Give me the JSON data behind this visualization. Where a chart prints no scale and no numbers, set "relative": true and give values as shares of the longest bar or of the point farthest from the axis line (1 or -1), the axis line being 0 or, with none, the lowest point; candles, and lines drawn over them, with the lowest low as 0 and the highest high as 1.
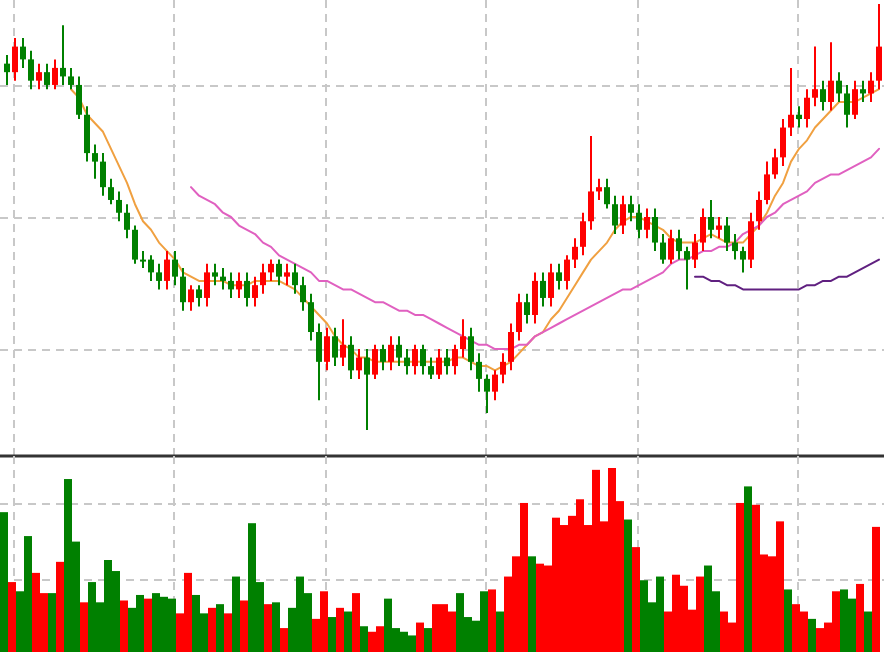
{
  "chart_data": [
    {
      "type": "candlestick",
      "relative": true,
      "grid": true,
      "categories": [
        null,
        null,
        null,
        null,
        null,
        null,
        null,
        null,
        null,
        null,
        null,
        null,
        null,
        null,
        null,
        null,
        null,
        null,
        null,
        null,
        null,
        null,
        null,
        null,
        null,
        null,
        null,
        null,
        null,
        null,
        null,
        null,
        null,
        null,
        null,
        null,
        null,
        null,
        null,
        null,
        null,
        null,
        null,
        null,
        null,
        null,
        null,
        null,
        null,
        null,
        null,
        null,
        null,
        null,
        null,
        null,
        null,
        null,
        null,
        null,
        null,
        null,
        null,
        null,
        null,
        null,
        null,
        null,
        null,
        null,
        null,
        null,
        null,
        null,
        null,
        null,
        null,
        null,
        null,
        null,
        null,
        null,
        null,
        null,
        null,
        null,
        null,
        null,
        null,
        null,
        null,
        null,
        null,
        null,
        null,
        null,
        null,
        null,
        null,
        null,
        null,
        null,
        null,
        null,
        null,
        null,
        null,
        null,
        null,
        null
      ],
      "ohlc": [
        [
          0.86,
          0.88,
          0.81,
          0.84
        ],
        [
          0.84,
          0.92,
          0.82,
          0.9
        ],
        [
          0.9,
          0.92,
          0.85,
          0.87
        ],
        [
          0.87,
          0.89,
          0.8,
          0.82
        ],
        [
          0.82,
          0.86,
          0.8,
          0.84
        ],
        [
          0.84,
          0.86,
          0.8,
          0.81
        ],
        [
          0.81,
          0.87,
          0.8,
          0.85
        ],
        [
          0.85,
          0.95,
          0.81,
          0.83
        ],
        [
          0.83,
          0.85,
          0.8,
          0.81
        ],
        [
          0.81,
          0.83,
          0.73,
          0.74
        ],
        [
          0.74,
          0.76,
          0.63,
          0.65
        ],
        [
          0.65,
          0.67,
          0.59,
          0.63
        ],
        [
          0.63,
          0.65,
          0.55,
          0.57
        ],
        [
          0.57,
          0.59,
          0.53,
          0.54
        ],
        [
          0.54,
          0.56,
          0.49,
          0.51
        ],
        [
          0.51,
          0.53,
          0.45,
          0.47
        ],
        [
          0.47,
          0.48,
          0.39,
          0.4
        ],
        [
          0.4,
          0.42,
          0.38,
          0.4
        ],
        [
          0.4,
          0.41,
          0.35,
          0.37
        ],
        [
          0.37,
          0.39,
          0.33,
          0.35
        ],
        [
          0.35,
          0.42,
          0.33,
          0.4
        ],
        [
          0.4,
          0.42,
          0.34,
          0.36
        ],
        [
          0.36,
          0.38,
          0.28,
          0.3
        ],
        [
          0.3,
          0.34,
          0.28,
          0.33
        ],
        [
          0.33,
          0.34,
          0.29,
          0.31
        ],
        [
          0.31,
          0.39,
          0.29,
          0.37
        ],
        [
          0.37,
          0.39,
          0.34,
          0.36
        ],
        [
          0.36,
          0.38,
          0.33,
          0.35
        ],
        [
          0.35,
          0.37,
          0.31,
          0.33
        ],
        [
          0.33,
          0.37,
          0.31,
          0.35
        ],
        [
          0.35,
          0.37,
          0.29,
          0.31
        ],
        [
          0.31,
          0.36,
          0.29,
          0.34
        ],
        [
          0.34,
          0.39,
          0.32,
          0.37
        ],
        [
          0.37,
          0.4,
          0.35,
          0.39
        ],
        [
          0.39,
          0.4,
          0.34,
          0.36
        ],
        [
          0.36,
          0.39,
          0.34,
          0.37
        ],
        [
          0.37,
          0.39,
          0.32,
          0.34
        ],
        [
          0.34,
          0.36,
          0.28,
          0.3
        ],
        [
          0.3,
          0.32,
          0.21,
          0.23
        ],
        [
          0.23,
          0.25,
          0.07,
          0.16
        ],
        [
          0.16,
          0.24,
          0.14,
          0.22
        ],
        [
          0.22,
          0.24,
          0.15,
          0.17
        ],
        [
          0.17,
          0.26,
          0.15,
          0.2
        ],
        [
          0.2,
          0.22,
          0.12,
          0.14
        ],
        [
          0.14,
          0.19,
          0.12,
          0.17
        ],
        [
          0.17,
          0.19,
          0,
          0.13
        ],
        [
          0.13,
          0.2,
          0.12,
          0.19
        ],
        [
          0.19,
          0.2,
          0.14,
          0.16
        ],
        [
          0.16,
          0.22,
          0.14,
          0.2
        ],
        [
          0.2,
          0.22,
          0.15,
          0.17
        ],
        [
          0.17,
          0.19,
          0.13,
          0.15
        ],
        [
          0.15,
          0.2,
          0.13,
          0.19
        ],
        [
          0.19,
          0.2,
          0.13,
          0.15
        ],
        [
          0.15,
          0.17,
          0.12,
          0.13
        ],
        [
          0.13,
          0.19,
          0.12,
          0.17
        ],
        [
          0.17,
          0.19,
          0.13,
          0.15
        ],
        [
          0.15,
          0.2,
          0.13,
          0.19
        ],
        [
          0.19,
          0.26,
          0.17,
          0.22
        ],
        [
          0.22,
          0.24,
          0.14,
          0.16
        ],
        [
          0.16,
          0.18,
          0.09,
          0.12
        ],
        [
          0.12,
          0.13,
          0.04,
          0.09
        ],
        [
          0.09,
          0.14,
          0.07,
          0.13
        ],
        [
          0.13,
          0.18,
          0.11,
          0.16
        ],
        [
          0.16,
          0.25,
          0.14,
          0.23
        ],
        [
          0.23,
          0.32,
          0.21,
          0.3
        ],
        [
          0.3,
          0.32,
          0.25,
          0.27
        ],
        [
          0.27,
          0.37,
          0.25,
          0.35
        ],
        [
          0.35,
          0.37,
          0.29,
          0.31
        ],
        [
          0.31,
          0.39,
          0.29,
          0.37
        ],
        [
          0.37,
          0.39,
          0.33,
          0.35
        ],
        [
          0.35,
          0.41,
          0.33,
          0.4
        ],
        [
          0.4,
          0.45,
          0.38,
          0.43
        ],
        [
          0.43,
          0.51,
          0.41,
          0.49
        ],
        [
          0.49,
          0.69,
          0.47,
          0.56
        ],
        [
          0.56,
          0.59,
          0.54,
          0.57
        ],
        [
          0.57,
          0.59,
          0.52,
          0.53
        ],
        [
          0.53,
          0.55,
          0.46,
          0.48
        ],
        [
          0.48,
          0.55,
          0.46,
          0.53
        ],
        [
          0.53,
          0.55,
          0.49,
          0.51
        ],
        [
          0.51,
          0.53,
          0.45,
          0.47
        ],
        [
          0.47,
          0.52,
          0.45,
          0.5
        ],
        [
          0.5,
          0.52,
          0.42,
          0.44
        ],
        [
          0.44,
          0.46,
          0.39,
          0.4
        ],
        [
          0.4,
          0.47,
          0.39,
          0.45
        ],
        [
          0.45,
          0.47,
          0.4,
          0.42
        ],
        [
          0.42,
          0.43,
          0.33,
          0.4
        ],
        [
          0.4,
          0.46,
          0.38,
          0.44
        ],
        [
          0.44,
          0.52,
          0.42,
          0.5
        ],
        [
          0.5,
          0.54,
          0.45,
          0.47
        ],
        [
          0.47,
          0.5,
          0.45,
          0.48
        ],
        [
          0.48,
          0.5,
          0.42,
          0.44
        ],
        [
          0.44,
          0.46,
          0.4,
          0.42
        ],
        [
          0.42,
          0.43,
          0.37,
          0.4
        ],
        [
          0.4,
          0.51,
          0.38,
          0.49
        ],
        [
          0.49,
          0.56,
          0.47,
          0.54
        ],
        [
          0.54,
          0.63,
          0.53,
          0.6
        ],
        [
          0.6,
          0.66,
          0.59,
          0.64
        ],
        [
          0.64,
          0.73,
          0.62,
          0.71
        ],
        [
          0.71,
          0.85,
          0.69,
          0.74
        ],
        [
          0.74,
          0.76,
          0.71,
          0.73
        ],
        [
          0.73,
          0.8,
          0.71,
          0.78
        ],
        [
          0.78,
          0.9,
          0.76,
          0.8
        ],
        [
          0.8,
          0.82,
          0.75,
          0.77
        ],
        [
          0.77,
          0.91,
          0.75,
          0.82
        ],
        [
          0.82,
          0.84,
          0.77,
          0.79
        ],
        [
          0.79,
          0.81,
          0.71,
          0.74
        ],
        [
          0.74,
          0.82,
          0.73,
          0.8
        ],
        [
          0.8,
          0.82,
          0.77,
          0.79
        ],
        [
          0.79,
          0.84,
          0.77,
          0.82
        ],
        [
          0.82,
          1.0,
          0.8,
          0.9
        ]
      ],
      "colors": [
        "#008000",
        "#ff0000",
        "#008000",
        "#008000",
        "#ff0000",
        "#008000",
        "#ff0000",
        "#008000",
        "#008000",
        "#008000",
        "#008000",
        "#008000",
        "#008000",
        "#008000",
        "#008000",
        "#008000",
        "#008000",
        "#008000",
        "#008000",
        "#008000",
        "#ff0000",
        "#008000",
        "#008000",
        "#ff0000",
        "#008000",
        "#ff0000",
        "#008000",
        "#008000",
        "#008000",
        "#ff0000",
        "#008000",
        "#ff0000",
        "#ff0000",
        "#ff0000",
        "#008000",
        "#ff0000",
        "#008000",
        "#008000",
        "#008000",
        "#008000",
        "#ff0000",
        "#008000",
        "#ff0000",
        "#008000",
        "#ff0000",
        "#008000",
        "#ff0000",
        "#008000",
        "#ff0000",
        "#008000",
        "#008000",
        "#ff0000",
        "#008000",
        "#008000",
        "#ff0000",
        "#008000",
        "#ff0000",
        "#ff0000",
        "#008000",
        "#008000",
        "#008000",
        "#ff0000",
        "#ff0000",
        "#ff0000",
        "#ff0000",
        "#008000",
        "#ff0000",
        "#008000",
        "#ff0000",
        "#008000",
        "#ff0000",
        "#ff0000",
        "#ff0000",
        "#ff0000",
        "#ff0000",
        "#008000",
        "#008000",
        "#ff0000",
        "#008000",
        "#008000",
        "#ff0000",
        "#008000",
        "#008000",
        "#ff0000",
        "#008000",
        "#008000",
        "#ff0000",
        "#ff0000",
        "#008000",
        "#ff0000",
        "#008000",
        "#008000",
        "#008000",
        "#ff0000",
        "#ff0000",
        "#ff0000",
        "#ff0000",
        "#ff0000",
        "#ff0000",
        "#008000",
        "#ff0000",
        "#ff0000",
        "#008000",
        "#ff0000",
        "#008000",
        "#008000",
        "#ff0000",
        "#008000",
        "#ff0000",
        "#ff0000"
      ],
      "series": [
        {
          "type": "line",
          "color": "#f0a040",
          "values": [
            null,
            null,
            null,
            null,
            null,
            null,
            null,
            null,
            0.8,
            0.78,
            0.74,
            0.72,
            0.7,
            0.66,
            0.62,
            0.58,
            0.53,
            0.49,
            0.47,
            0.44,
            0.42,
            0.4,
            0.37,
            0.36,
            0.35,
            0.35,
            0.35,
            0.35,
            0.34,
            0.34,
            0.34,
            0.35,
            0.35,
            0.35,
            0.35,
            0.34,
            0.33,
            0.31,
            0.29,
            0.27,
            0.25,
            0.22,
            0.2,
            0.19,
            0.17,
            0.17,
            0.16,
            0.16,
            0.16,
            0.16,
            0.16,
            0.16,
            0.16,
            0.16,
            0.16,
            0.16,
            0.17,
            0.17,
            0.16,
            0.15,
            0.15,
            0.14,
            0.15,
            0.16,
            0.18,
            0.2,
            0.22,
            0.23,
            0.26,
            0.28,
            0.31,
            0.34,
            0.37,
            0.4,
            0.42,
            0.44,
            0.47,
            0.49,
            0.5,
            0.5,
            0.49,
            0.48,
            0.47,
            0.45,
            0.44,
            0.44,
            0.44,
            0.45,
            0.46,
            0.45,
            0.44,
            0.44,
            0.44,
            0.46,
            0.48,
            0.51,
            0.55,
            0.58,
            0.63,
            0.66,
            0.68,
            0.71,
            0.73,
            0.75,
            0.77,
            0.77,
            0.77,
            0.78,
            0.79,
            0.8
          ]
        },
        {
          "type": "line",
          "color": "#e060c0",
          "values": [
            null,
            null,
            null,
            null,
            null,
            null,
            null,
            null,
            null,
            null,
            null,
            null,
            null,
            null,
            null,
            null,
            null,
            null,
            null,
            null,
            null,
            null,
            null,
            0.57,
            0.55,
            0.54,
            0.53,
            0.51,
            0.5,
            0.48,
            0.47,
            0.46,
            0.44,
            0.43,
            0.41,
            0.4,
            0.39,
            0.38,
            0.37,
            0.35,
            0.35,
            0.34,
            0.33,
            0.33,
            0.32,
            0.31,
            0.3,
            0.3,
            0.29,
            0.28,
            0.28,
            0.27,
            0.27,
            0.26,
            0.25,
            0.24,
            0.23,
            0.22,
            0.21,
            0.2,
            0.2,
            0.19,
            0.19,
            0.19,
            0.2,
            0.2,
            0.22,
            0.23,
            0.24,
            0.25,
            0.26,
            0.27,
            0.28,
            0.29,
            0.3,
            0.31,
            0.32,
            0.33,
            0.33,
            0.34,
            0.35,
            0.36,
            0.37,
            0.39,
            0.4,
            0.4,
            0.41,
            0.42,
            0.42,
            0.43,
            0.43,
            0.44,
            0.46,
            0.47,
            0.48,
            0.5,
            0.51,
            0.53,
            0.54,
            0.55,
            0.56,
            0.58,
            0.59,
            0.6,
            0.6,
            0.61,
            0.62,
            0.63,
            0.64,
            0.66
          ]
        },
        {
          "type": "line",
          "color": "#602080",
          "values": [
            null,
            null,
            null,
            null,
            null,
            null,
            null,
            null,
            null,
            null,
            null,
            null,
            null,
            null,
            null,
            null,
            null,
            null,
            null,
            null,
            null,
            null,
            null,
            null,
            null,
            null,
            null,
            null,
            null,
            null,
            null,
            null,
            null,
            null,
            null,
            null,
            null,
            null,
            null,
            null,
            null,
            null,
            null,
            null,
            null,
            null,
            null,
            null,
            null,
            null,
            null,
            null,
            null,
            null,
            null,
            null,
            null,
            null,
            null,
            null,
            null,
            null,
            null,
            null,
            null,
            null,
            null,
            null,
            null,
            null,
            null,
            null,
            null,
            null,
            null,
            null,
            null,
            null,
            null,
            null,
            null,
            null,
            null,
            null,
            null,
            null,
            0.36,
            0.36,
            0.35,
            0.35,
            0.34,
            0.34,
            0.33,
            0.33,
            0.33,
            0.33,
            0.33,
            0.33,
            0.33,
            0.33,
            0.34,
            0.34,
            0.35,
            0.35,
            0.36,
            0.36,
            0.37,
            0.38,
            0.39,
            0.4
          ]
        }
      ]
    },
    {
      "type": "bar",
      "relative": true,
      "grid": true,
      "categories": [
        null,
        null,
        null,
        null,
        null,
        null,
        null,
        null,
        null,
        null,
        null,
        null,
        null,
        null,
        null,
        null,
        null,
        null,
        null,
        null,
        null,
        null,
        null,
        null,
        null,
        null,
        null,
        null,
        null,
        null,
        null,
        null,
        null,
        null,
        null,
        null,
        null,
        null,
        null,
        null,
        null,
        null,
        null,
        null,
        null,
        null,
        null,
        null,
        null,
        null,
        null,
        null,
        null,
        null,
        null,
        null,
        null,
        null,
        null,
        null,
        null,
        null,
        null,
        null,
        null,
        null,
        null,
        null,
        null,
        null,
        null,
        null,
        null,
        null,
        null,
        null,
        null,
        null,
        null,
        null,
        null,
        null,
        null,
        null,
        null,
        null,
        null,
        null,
        null,
        null,
        null,
        null,
        null,
        null,
        null,
        null,
        null,
        null,
        null,
        null,
        null,
        null,
        null,
        null,
        null,
        null,
        null,
        null,
        null,
        null
      ],
      "values": [
        0.76,
        0.38,
        0.33,
        0.63,
        0.43,
        0.32,
        0.32,
        0.49,
        0.94,
        0.6,
        0.27,
        0.38,
        0.27,
        0.5,
        0.44,
        0.28,
        0.24,
        0.31,
        0.29,
        0.32,
        0.3,
        0.29,
        0.21,
        0.43,
        0.31,
        0.21,
        0.24,
        0.26,
        0.21,
        0.41,
        0.28,
        0.7,
        0.38,
        0.26,
        0.27,
        0.13,
        0.24,
        0.41,
        0.32,
        0.18,
        0.33,
        0.19,
        0.24,
        0.22,
        0.32,
        0.14,
        0.11,
        0.14,
        0.29,
        0.13,
        0.11,
        0.09,
        0.16,
        0.13,
        0.26,
        0.26,
        0.22,
        0.32,
        0.19,
        0.17,
        0.33,
        0.34,
        0.22,
        0.41,
        0.52,
        0.81,
        0.52,
        0.48,
        0.47,
        0.73,
        0.69,
        0.74,
        0.83,
        0.69,
        0.99,
        0.71,
        1.0,
        0.82,
        0.72,
        0.57,
        0.39,
        0.27,
        0.41,
        0.22,
        0.42,
        0.36,
        0.23,
        0.41,
        0.47,
        0.33,
        0.22,
        0.16,
        0.81,
        0.9,
        0.8,
        0.53,
        0.52,
        0.71,
        0.34,
        0.26,
        0.22,
        0.18,
        0.13,
        0.16,
        0.33,
        0.34,
        0.29,
        0.37,
        0.22,
        0.68
      ],
      "colors": [
        "#008000",
        "#ff0000",
        "#008000",
        "#008000",
        "#ff0000",
        "#ff0000",
        "#008000",
        "#ff0000",
        "#008000",
        "#008000",
        "#ff0000",
        "#008000",
        "#008000",
        "#008000",
        "#008000",
        "#ff0000",
        "#008000",
        "#008000",
        "#ff0000",
        "#008000",
        "#008000",
        "#008000",
        "#ff0000",
        "#ff0000",
        "#008000",
        "#008000",
        "#ff0000",
        "#008000",
        "#ff0000",
        "#008000",
        "#ff0000",
        "#008000",
        "#008000",
        "#ff0000",
        "#008000",
        "#ff0000",
        "#008000",
        "#008000",
        "#008000",
        "#ff0000",
        "#ff0000",
        "#008000",
        "#ff0000",
        "#008000",
        "#ff0000",
        "#008000",
        "#ff0000",
        "#ff0000",
        "#008000",
        "#008000",
        "#008000",
        "#008000",
        "#ff0000",
        "#008000",
        "#ff0000",
        "#ff0000",
        "#ff0000",
        "#008000",
        "#008000",
        "#008000",
        "#008000",
        "#ff0000",
        "#008000",
        "#ff0000",
        "#ff0000",
        "#ff0000",
        "#008000",
        "#ff0000",
        "#ff0000",
        "#ff0000",
        "#ff0000",
        "#ff0000",
        "#ff0000",
        "#ff0000",
        "#ff0000",
        "#ff0000",
        "#ff0000",
        "#ff0000",
        "#008000",
        "#ff0000",
        "#008000",
        "#008000",
        "#008000",
        "#ff0000",
        "#ff0000",
        "#ff0000",
        "#ff0000",
        "#ff0000",
        "#008000",
        "#008000",
        "#ff0000",
        "#ff0000",
        "#ff0000",
        "#008000",
        "#ff0000",
        "#ff0000",
        "#ff0000",
        "#ff0000",
        "#008000",
        "#ff0000",
        "#ff0000",
        "#008000",
        "#ff0000",
        "#ff0000",
        "#ff0000",
        "#008000",
        "#008000",
        "#ff0000",
        "#008000",
        "#ff0000"
      ]
    }
  ]
}
